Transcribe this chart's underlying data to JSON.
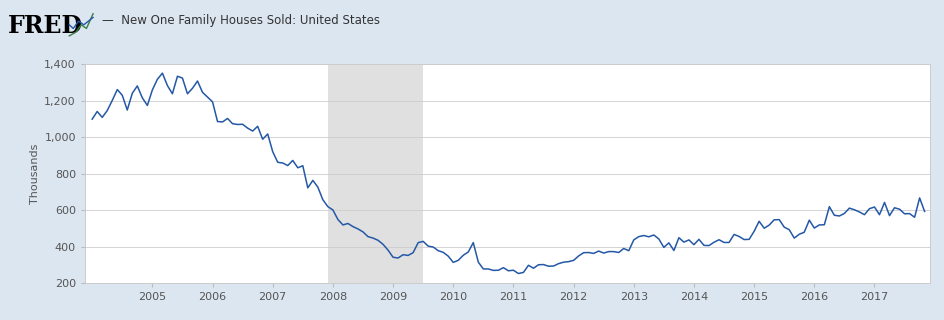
{
  "title": "New One Family Houses Sold: United States",
  "ylabel": "Thousands",
  "line_color": "#2458a6",
  "background_color": "#dce6f0",
  "plot_bg_color": "#ffffff",
  "recession_color": "#e0e0e0",
  "recession_start": 2007.917,
  "recession_end": 2009.5,
  "ylim": [
    200,
    1400
  ],
  "yticks": [
    200,
    400,
    600,
    800,
    1000,
    1200,
    1400
  ],
  "xmin": 2003.88,
  "xmax": 2017.92,
  "xticks": [
    2005,
    2006,
    2007,
    2008,
    2009,
    2010,
    2011,
    2012,
    2013,
    2014,
    2015,
    2016,
    2017
  ],
  "fred_text": "FRED",
  "series_label": "New One Family Houses Sold: United States",
  "data": [
    [
      2004.0,
      1098
    ],
    [
      2004.083,
      1140
    ],
    [
      2004.167,
      1108
    ],
    [
      2004.25,
      1145
    ],
    [
      2004.333,
      1200
    ],
    [
      2004.417,
      1260
    ],
    [
      2004.5,
      1229
    ],
    [
      2004.583,
      1148
    ],
    [
      2004.667,
      1240
    ],
    [
      2004.75,
      1280
    ],
    [
      2004.833,
      1215
    ],
    [
      2004.917,
      1173
    ],
    [
      2005.0,
      1258
    ],
    [
      2005.083,
      1316
    ],
    [
      2005.167,
      1350
    ],
    [
      2005.25,
      1282
    ],
    [
      2005.333,
      1237
    ],
    [
      2005.417,
      1333
    ],
    [
      2005.5,
      1323
    ],
    [
      2005.583,
      1237
    ],
    [
      2005.667,
      1267
    ],
    [
      2005.75,
      1307
    ],
    [
      2005.833,
      1245
    ],
    [
      2005.917,
      1219
    ],
    [
      2006.0,
      1193
    ],
    [
      2006.083,
      1085
    ],
    [
      2006.167,
      1083
    ],
    [
      2006.25,
      1102
    ],
    [
      2006.333,
      1073
    ],
    [
      2006.417,
      1069
    ],
    [
      2006.5,
      1070
    ],
    [
      2006.583,
      1049
    ],
    [
      2006.667,
      1033
    ],
    [
      2006.75,
      1059
    ],
    [
      2006.833,
      988
    ],
    [
      2006.917,
      1017
    ],
    [
      2007.0,
      920
    ],
    [
      2007.083,
      862
    ],
    [
      2007.167,
      858
    ],
    [
      2007.25,
      844
    ],
    [
      2007.333,
      872
    ],
    [
      2007.417,
      832
    ],
    [
      2007.5,
      843
    ],
    [
      2007.583,
      722
    ],
    [
      2007.667,
      763
    ],
    [
      2007.75,
      726
    ],
    [
      2007.833,
      657
    ],
    [
      2007.917,
      619
    ],
    [
      2008.0,
      601
    ],
    [
      2008.083,
      549
    ],
    [
      2008.167,
      519
    ],
    [
      2008.25,
      527
    ],
    [
      2008.333,
      510
    ],
    [
      2008.417,
      497
    ],
    [
      2008.5,
      481
    ],
    [
      2008.583,
      455
    ],
    [
      2008.667,
      447
    ],
    [
      2008.75,
      435
    ],
    [
      2008.833,
      413
    ],
    [
      2008.917,
      381
    ],
    [
      2009.0,
      342
    ],
    [
      2009.083,
      338
    ],
    [
      2009.167,
      356
    ],
    [
      2009.25,
      352
    ],
    [
      2009.333,
      367
    ],
    [
      2009.417,
      422
    ],
    [
      2009.5,
      429
    ],
    [
      2009.583,
      403
    ],
    [
      2009.667,
      398
    ],
    [
      2009.75,
      378
    ],
    [
      2009.833,
      369
    ],
    [
      2009.917,
      348
    ],
    [
      2010.0,
      314
    ],
    [
      2010.083,
      325
    ],
    [
      2010.167,
      353
    ],
    [
      2010.25,
      371
    ],
    [
      2010.333,
      422
    ],
    [
      2010.417,
      315
    ],
    [
      2010.5,
      278
    ],
    [
      2010.583,
      278
    ],
    [
      2010.667,
      270
    ],
    [
      2010.75,
      271
    ],
    [
      2010.833,
      285
    ],
    [
      2010.917,
      268
    ],
    [
      2011.0,
      271
    ],
    [
      2011.083,
      253
    ],
    [
      2011.167,
      259
    ],
    [
      2011.25,
      298
    ],
    [
      2011.333,
      282
    ],
    [
      2011.417,
      301
    ],
    [
      2011.5,
      302
    ],
    [
      2011.583,
      293
    ],
    [
      2011.667,
      294
    ],
    [
      2011.75,
      307
    ],
    [
      2011.833,
      315
    ],
    [
      2011.917,
      318
    ],
    [
      2012.0,
      325
    ],
    [
      2012.083,
      349
    ],
    [
      2012.167,
      367
    ],
    [
      2012.25,
      368
    ],
    [
      2012.333,
      363
    ],
    [
      2012.417,
      376
    ],
    [
      2012.5,
      365
    ],
    [
      2012.583,
      373
    ],
    [
      2012.667,
      373
    ],
    [
      2012.75,
      368
    ],
    [
      2012.833,
      390
    ],
    [
      2012.917,
      378
    ],
    [
      2013.0,
      437
    ],
    [
      2013.083,
      455
    ],
    [
      2013.167,
      461
    ],
    [
      2013.25,
      454
    ],
    [
      2013.333,
      464
    ],
    [
      2013.417,
      442
    ],
    [
      2013.5,
      396
    ],
    [
      2013.583,
      421
    ],
    [
      2013.667,
      379
    ],
    [
      2013.75,
      449
    ],
    [
      2013.833,
      425
    ],
    [
      2013.917,
      437
    ],
    [
      2014.0,
      411
    ],
    [
      2014.083,
      440
    ],
    [
      2014.167,
      407
    ],
    [
      2014.25,
      406
    ],
    [
      2014.333,
      424
    ],
    [
      2014.417,
      438
    ],
    [
      2014.5,
      423
    ],
    [
      2014.583,
      423
    ],
    [
      2014.667,
      467
    ],
    [
      2014.75,
      456
    ],
    [
      2014.833,
      439
    ],
    [
      2014.917,
      440
    ],
    [
      2015.0,
      484
    ],
    [
      2015.083,
      539
    ],
    [
      2015.167,
      501
    ],
    [
      2015.25,
      518
    ],
    [
      2015.333,
      547
    ],
    [
      2015.417,
      548
    ],
    [
      2015.5,
      507
    ],
    [
      2015.583,
      493
    ],
    [
      2015.667,
      447
    ],
    [
      2015.75,
      468
    ],
    [
      2015.833,
      479
    ],
    [
      2015.917,
      545
    ],
    [
      2016.0,
      502
    ],
    [
      2016.083,
      519
    ],
    [
      2016.167,
      520
    ],
    [
      2016.25,
      619
    ],
    [
      2016.333,
      572
    ],
    [
      2016.417,
      568
    ],
    [
      2016.5,
      582
    ],
    [
      2016.583,
      611
    ],
    [
      2016.667,
      602
    ],
    [
      2016.75,
      590
    ],
    [
      2016.833,
      575
    ],
    [
      2016.917,
      608
    ],
    [
      2017.0,
      617
    ],
    [
      2017.083,
      575
    ],
    [
      2017.167,
      642
    ],
    [
      2017.25,
      570
    ],
    [
      2017.333,
      613
    ],
    [
      2017.417,
      605
    ],
    [
      2017.5,
      580
    ],
    [
      2017.583,
      581
    ],
    [
      2017.667,
      561
    ],
    [
      2017.75,
      667
    ],
    [
      2017.833,
      593
    ]
  ]
}
